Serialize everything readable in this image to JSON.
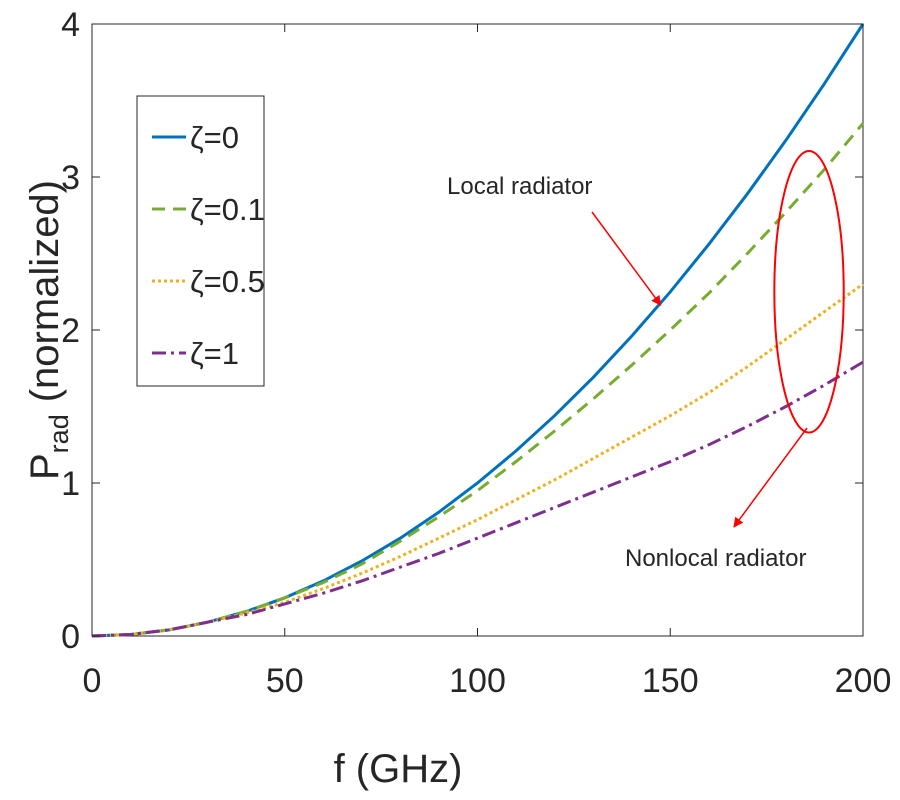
{
  "chart_data": {
    "type": "line",
    "title": "",
    "xlabel": "f  (GHz)",
    "ylabel_main": "P",
    "ylabel_sub": "rad",
    "ylabel_rest": "(normalized)",
    "xlim": [
      0,
      200
    ],
    "ylim": [
      0,
      4
    ],
    "xticks": [
      0,
      50,
      100,
      150,
      200
    ],
    "yticks": [
      0,
      1,
      2,
      3,
      4
    ],
    "grid": false,
    "legend_position": "top-left",
    "x": [
      0,
      10,
      20,
      30,
      40,
      50,
      60,
      70,
      80,
      90,
      100,
      110,
      120,
      130,
      140,
      150,
      160,
      170,
      180,
      190,
      200
    ],
    "series": [
      {
        "name": "ζ=0",
        "color": "#0072BD",
        "style": "solid",
        "values": [
          0,
          0.01,
          0.04,
          0.09,
          0.16,
          0.25,
          0.36,
          0.49,
          0.64,
          0.81,
          1.0,
          1.21,
          1.44,
          1.69,
          1.96,
          2.25,
          2.56,
          2.89,
          3.24,
          3.61,
          4.0
        ]
      },
      {
        "name": "ζ=0.1",
        "color": "#77AC30",
        "style": "dashed",
        "values": [
          0,
          0.01,
          0.04,
          0.09,
          0.16,
          0.25,
          0.35,
          0.47,
          0.62,
          0.78,
          0.95,
          1.14,
          1.34,
          1.55,
          1.77,
          2.0,
          2.24,
          2.5,
          2.77,
          3.05,
          3.35
        ]
      },
      {
        "name": "ζ=0.5",
        "color": "#EDB120",
        "style": "dotted",
        "values": [
          0,
          0.01,
          0.04,
          0.09,
          0.15,
          0.22,
          0.31,
          0.41,
          0.52,
          0.64,
          0.76,
          0.89,
          1.02,
          1.16,
          1.3,
          1.44,
          1.59,
          1.76,
          1.94,
          2.12,
          2.3
        ]
      },
      {
        "name": "ζ=1",
        "color": "#7E2F8E",
        "style": "dashdot",
        "values": [
          0,
          0.01,
          0.04,
          0.09,
          0.14,
          0.21,
          0.28,
          0.36,
          0.45,
          0.54,
          0.64,
          0.74,
          0.84,
          0.94,
          1.04,
          1.14,
          1.25,
          1.37,
          1.5,
          1.64,
          1.79
        ]
      }
    ],
    "annotations": [
      {
        "text": "Local radiator",
        "arrow_to": [
          147,
          2.15
        ]
      },
      {
        "text": "Nonlocal radiator",
        "arrow_to": [
          166,
          0.7
        ]
      }
    ],
    "highlight_ellipse": {
      "color": "#ff0000",
      "x_center": 186,
      "y_center": 2.25,
      "x_radius": 9,
      "y_radius": 0.92
    }
  }
}
